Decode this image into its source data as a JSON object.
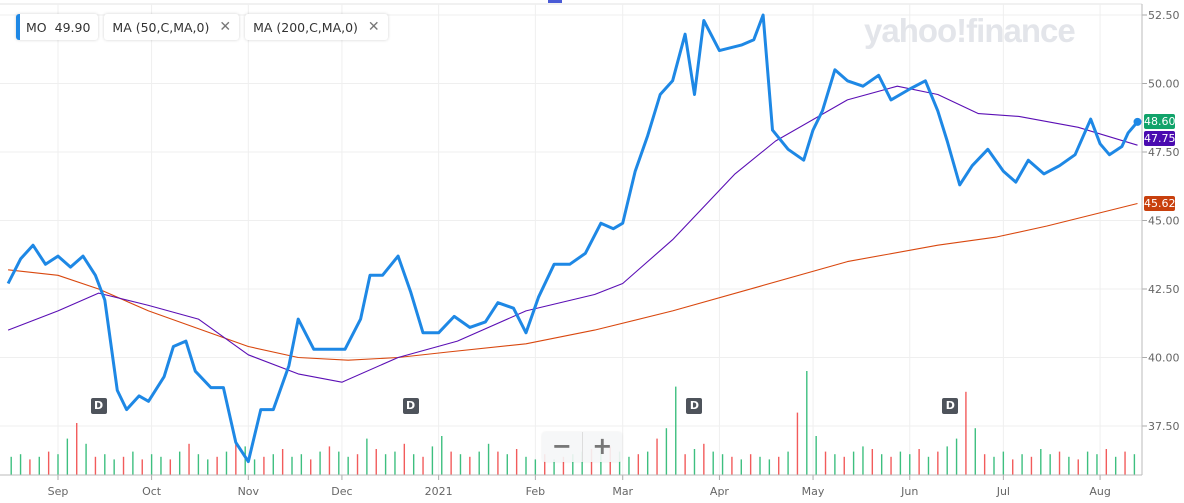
{
  "legend": {
    "symbol": "MO",
    "price": "49.90",
    "studies": [
      {
        "label": "MA (50,C,MA,0)"
      },
      {
        "label": "MA (200,C,MA,0)"
      }
    ],
    "close_icon": "close-icon"
  },
  "logo": "yahoo!finance",
  "zoom_controls": {
    "minus": "−",
    "plus": "+"
  },
  "price_tags": {
    "last": "48.60",
    "ma50": "47.75",
    "ma200": "45.62"
  },
  "colors": {
    "price": "#1e88e5",
    "ma50": "#5b0fb5",
    "ma200": "#d9480f",
    "last_tag": "#11a36a",
    "ma50_tag": "#4a0bb0",
    "ma200_tag": "#c8400d",
    "vol_up": "#3dbf7f",
    "vol_down": "#f25b5b"
  },
  "chart_data": {
    "type": "line",
    "title": "",
    "ylim": [
      35.8,
      52.9
    ],
    "y_ticks": [
      "52.50",
      "50.00",
      "47.50",
      "45.00",
      "42.50",
      "40.00",
      "37.50"
    ],
    "x_ticks": [
      {
        "label": "Sep",
        "date": "2020-09-01"
      },
      {
        "label": "Oct",
        "date": "2020-10-01"
      },
      {
        "label": "Nov",
        "date": "2020-11-01"
      },
      {
        "label": "Dec",
        "date": "2020-12-01"
      },
      {
        "label": "2021",
        "date": "2021-01-01"
      },
      {
        "label": "Feb",
        "date": "2021-02-01"
      },
      {
        "label": "Mar",
        "date": "2021-03-01"
      },
      {
        "label": "Apr",
        "date": "2021-04-01"
      },
      {
        "label": "May",
        "date": "2021-05-01"
      },
      {
        "label": "Jun",
        "date": "2021-06-01"
      },
      {
        "label": "Jul",
        "date": "2021-07-01"
      },
      {
        "label": "Aug",
        "date": "2021-08-01"
      }
    ],
    "grid": true,
    "series": [
      {
        "name": "MO",
        "points": [
          [
            "2020-08-16",
            42.7
          ],
          [
            "2020-08-20",
            43.6
          ],
          [
            "2020-08-24",
            44.1
          ],
          [
            "2020-08-28",
            43.4
          ],
          [
            "2020-09-01",
            43.7
          ],
          [
            "2020-09-05",
            43.3
          ],
          [
            "2020-09-09",
            43.7
          ],
          [
            "2020-09-13",
            43.0
          ],
          [
            "2020-09-16",
            42.1
          ],
          [
            "2020-09-20",
            38.8
          ],
          [
            "2020-09-23",
            38.1
          ],
          [
            "2020-09-27",
            38.6
          ],
          [
            "2020-09-30",
            38.4
          ],
          [
            "2020-10-05",
            39.3
          ],
          [
            "2020-10-08",
            40.4
          ],
          [
            "2020-10-12",
            40.6
          ],
          [
            "2020-10-15",
            39.5
          ],
          [
            "2020-10-20",
            38.9
          ],
          [
            "2020-10-24",
            38.9
          ],
          [
            "2020-10-28",
            36.9
          ],
          [
            "2020-11-01",
            36.2
          ],
          [
            "2020-11-05",
            38.1
          ],
          [
            "2020-11-09",
            38.1
          ],
          [
            "2020-11-14",
            39.7
          ],
          [
            "2020-11-17",
            41.4
          ],
          [
            "2020-11-22",
            40.3
          ],
          [
            "2020-11-27",
            40.3
          ],
          [
            "2020-12-02",
            40.3
          ],
          [
            "2020-12-07",
            41.4
          ],
          [
            "2020-12-10",
            43.0
          ],
          [
            "2020-12-14",
            43.0
          ],
          [
            "2020-12-19",
            43.7
          ],
          [
            "2020-12-23",
            42.4
          ],
          [
            "2020-12-27",
            40.9
          ],
          [
            "2021-01-01",
            40.9
          ],
          [
            "2021-01-06",
            41.5
          ],
          [
            "2021-01-11",
            41.1
          ],
          [
            "2021-01-16",
            41.3
          ],
          [
            "2021-01-20",
            42.0
          ],
          [
            "2021-01-25",
            41.8
          ],
          [
            "2021-01-29",
            40.9
          ],
          [
            "2021-02-02",
            42.2
          ],
          [
            "2021-02-07",
            43.4
          ],
          [
            "2021-02-12",
            43.4
          ],
          [
            "2021-02-17",
            43.8
          ],
          [
            "2021-02-22",
            44.9
          ],
          [
            "2021-02-26",
            44.7
          ],
          [
            "2021-03-01",
            44.9
          ],
          [
            "2021-03-05",
            46.8
          ],
          [
            "2021-03-09",
            48.1
          ],
          [
            "2021-03-13",
            49.6
          ],
          [
            "2021-03-17",
            50.1
          ],
          [
            "2021-03-21",
            51.8
          ],
          [
            "2021-03-24",
            49.6
          ],
          [
            "2021-03-27",
            52.3
          ],
          [
            "2021-04-01",
            51.2
          ],
          [
            "2021-04-08",
            51.4
          ],
          [
            "2021-04-12",
            51.6
          ],
          [
            "2021-04-15",
            52.5
          ],
          [
            "2021-04-18",
            48.3
          ],
          [
            "2021-04-23",
            47.6
          ],
          [
            "2021-04-28",
            47.2
          ],
          [
            "2021-05-01",
            48.3
          ],
          [
            "2021-05-04",
            49.0
          ],
          [
            "2021-05-08",
            50.5
          ],
          [
            "2021-05-12",
            50.1
          ],
          [
            "2021-05-17",
            49.9
          ],
          [
            "2021-05-22",
            50.3
          ],
          [
            "2021-05-26",
            49.4
          ],
          [
            "2021-06-01",
            49.8
          ],
          [
            "2021-06-06",
            50.1
          ],
          [
            "2021-06-10",
            49.0
          ],
          [
            "2021-06-13",
            47.9
          ],
          [
            "2021-06-17",
            46.3
          ],
          [
            "2021-06-21",
            47.0
          ],
          [
            "2021-06-26",
            47.6
          ],
          [
            "2021-07-01",
            46.8
          ],
          [
            "2021-07-05",
            46.4
          ],
          [
            "2021-07-09",
            47.2
          ],
          [
            "2021-07-14",
            46.7
          ],
          [
            "2021-07-19",
            47.0
          ],
          [
            "2021-07-24",
            47.4
          ],
          [
            "2021-07-29",
            48.7
          ],
          [
            "2021-08-01",
            47.8
          ],
          [
            "2021-08-04",
            47.4
          ],
          [
            "2021-08-08",
            47.7
          ],
          [
            "2021-08-10",
            48.2
          ],
          [
            "2021-08-13",
            48.6
          ]
        ]
      },
      {
        "name": "MA (50,C,MA,0)",
        "points": [
          [
            "2020-08-16",
            41.0
          ],
          [
            "2020-09-01",
            41.7
          ],
          [
            "2020-09-14",
            42.35
          ],
          [
            "2020-09-30",
            41.9
          ],
          [
            "2020-10-16",
            41.4
          ],
          [
            "2020-11-01",
            40.1
          ],
          [
            "2020-11-17",
            39.4
          ],
          [
            "2020-12-01",
            39.1
          ],
          [
            "2020-12-19",
            40.0
          ],
          [
            "2021-01-07",
            40.6
          ],
          [
            "2021-01-29",
            41.7
          ],
          [
            "2021-02-20",
            42.3
          ],
          [
            "2021-03-01",
            42.7
          ],
          [
            "2021-03-17",
            44.3
          ],
          [
            "2021-04-06",
            46.7
          ],
          [
            "2021-04-19",
            47.9
          ],
          [
            "2021-05-12",
            49.4
          ],
          [
            "2021-05-28",
            49.9
          ],
          [
            "2021-06-10",
            49.6
          ],
          [
            "2021-06-23",
            48.9
          ],
          [
            "2021-07-06",
            48.8
          ],
          [
            "2021-07-25",
            48.4
          ],
          [
            "2021-08-13",
            47.75
          ]
        ]
      },
      {
        "name": "MA (200,C,MA,0)",
        "points": [
          [
            "2020-08-16",
            43.2
          ],
          [
            "2020-09-01",
            43.0
          ],
          [
            "2020-09-14",
            42.5
          ],
          [
            "2020-09-30",
            41.7
          ],
          [
            "2020-11-01",
            40.4
          ],
          [
            "2020-11-17",
            40.0
          ],
          [
            "2020-12-03",
            39.9
          ],
          [
            "2020-12-19",
            40.0
          ],
          [
            "2021-01-04",
            40.2
          ],
          [
            "2021-01-29",
            40.5
          ],
          [
            "2021-02-20",
            41.0
          ],
          [
            "2021-03-17",
            41.7
          ],
          [
            "2021-04-14",
            42.6
          ],
          [
            "2021-05-12",
            43.5
          ],
          [
            "2021-06-10",
            44.1
          ],
          [
            "2021-06-29",
            44.4
          ],
          [
            "2021-07-15",
            44.8
          ],
          [
            "2021-08-13",
            45.62
          ]
        ]
      }
    ],
    "volume_start": "2020-08-14",
    "volume_step_days": 3,
    "volume": [
      6,
      7,
      8,
      6,
      7,
      9,
      8,
      14,
      20,
      12,
      7,
      8,
      6,
      7,
      9,
      6,
      8,
      7,
      6,
      9,
      12,
      8,
      6,
      7,
      9,
      14,
      11,
      6,
      7,
      8,
      10,
      7,
      8,
      6,
      9,
      11,
      9,
      7,
      8,
      14,
      10,
      8,
      9,
      12,
      8,
      7,
      11,
      15,
      9,
      8,
      7,
      9,
      12,
      9,
      8,
      10,
      7,
      6,
      8,
      6,
      7,
      8,
      9,
      10,
      12,
      11,
      9,
      7,
      8,
      9,
      14,
      18,
      34,
      8,
      10,
      12,
      9,
      8,
      7,
      6,
      8,
      7,
      6,
      7,
      9,
      24,
      40,
      15,
      9,
      8,
      7,
      9,
      11,
      10,
      8,
      7,
      9,
      8,
      10,
      7,
      9,
      11,
      14,
      32,
      18,
      8,
      7,
      9,
      6,
      8,
      7,
      10,
      8,
      9,
      7,
      6,
      9,
      8,
      10,
      7,
      9,
      8,
      6,
      5,
      5
    ],
    "dividends": [
      {
        "label": "D",
        "date": "2020-09-14"
      },
      {
        "label": "D",
        "date": "2020-12-23"
      },
      {
        "label": "D",
        "date": "2021-03-24"
      },
      {
        "label": "D",
        "date": "2021-06-14"
      }
    ]
  }
}
